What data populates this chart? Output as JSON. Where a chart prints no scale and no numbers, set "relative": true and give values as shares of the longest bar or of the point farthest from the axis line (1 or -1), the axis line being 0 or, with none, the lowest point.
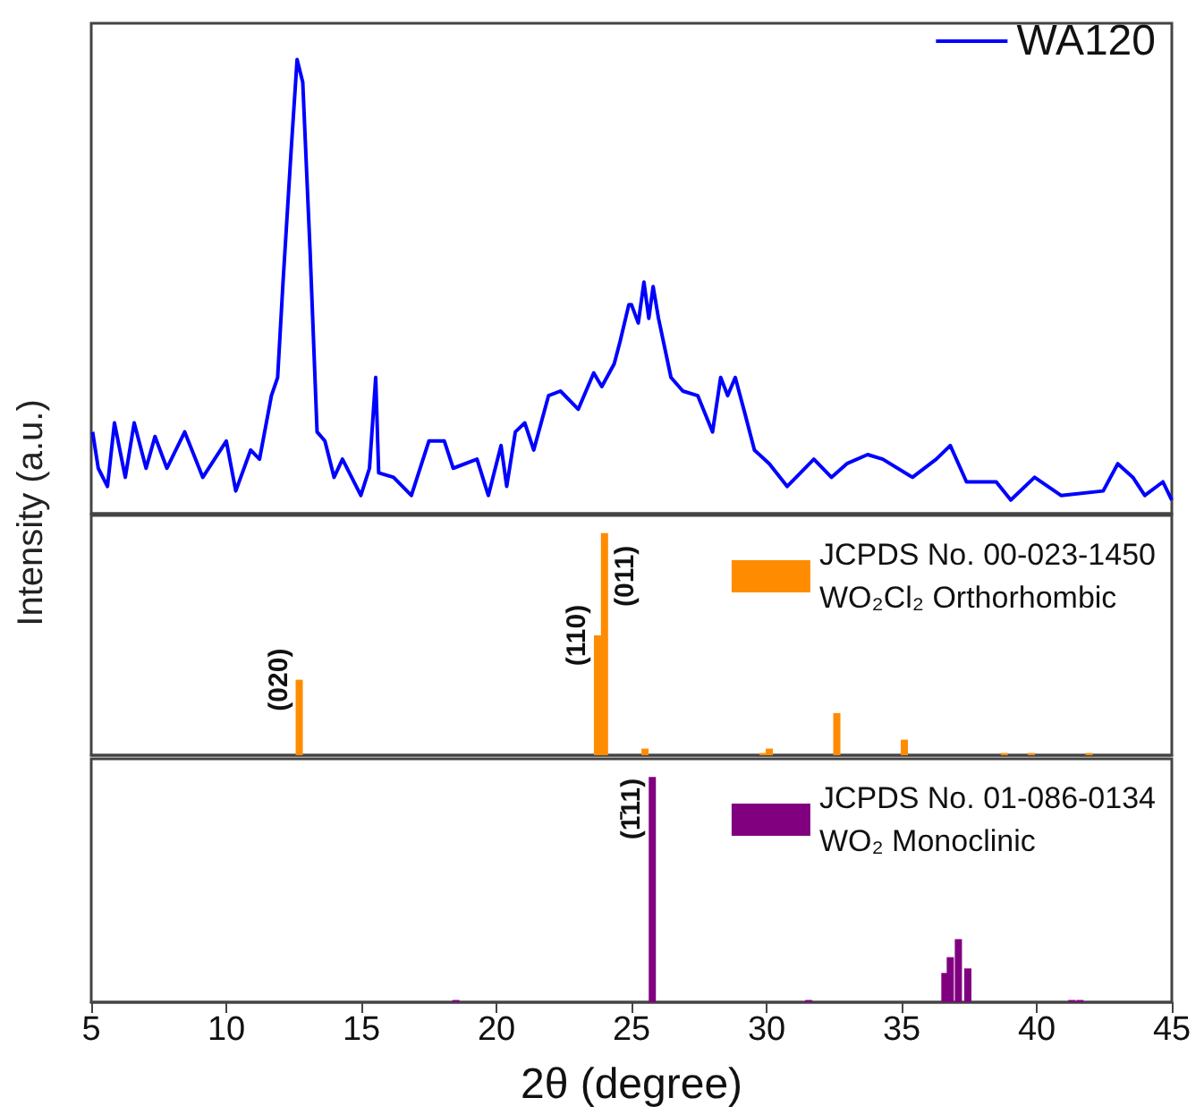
{
  "chart_data": [
    {
      "type": "line",
      "relative": true,
      "xlim": [
        5,
        45
      ],
      "tick_labels": false,
      "grid": false,
      "legend": "top right",
      "marker": "none",
      "line_style": "solid",
      "series": [
        {
          "name": "WA120",
          "color": "#0000ff",
          "x": [
            5.05,
            5.26,
            5.6,
            5.86,
            6.26,
            6.59,
            7.03,
            7.36,
            7.8,
            8.46,
            9.13,
            10.0,
            10.35,
            10.9,
            11.23,
            11.67,
            11.9,
            12.1,
            12.4,
            12.62,
            12.83,
            13.1,
            13.36,
            13.65,
            13.99,
            14.3,
            14.98,
            15.3,
            15.53,
            15.64,
            16.19,
            16.85,
            17.5,
            18.07,
            18.4,
            19.28,
            19.7,
            20.17,
            20.38,
            20.7,
            21.05,
            21.38,
            21.93,
            22.37,
            23.03,
            23.6,
            23.9,
            24.36,
            24.58,
            24.9,
            25.0,
            25.25,
            25.46,
            25.64,
            25.8,
            26.0,
            26.46,
            26.9,
            27.45,
            28.0,
            28.3,
            28.56,
            28.84,
            29.2,
            29.55,
            30.1,
            30.76,
            31.75,
            32.4,
            32.97,
            33.74,
            34.3,
            35.4,
            36.28,
            36.8,
            37.4,
            38.5,
            39.04,
            39.92,
            40.9,
            42.46,
            43.0,
            43.56,
            44.0,
            44.67,
            45.0
          ],
          "values": [
            0.18,
            0.1,
            0.06,
            0.2,
            0.08,
            0.2,
            0.1,
            0.17,
            0.1,
            0.18,
            0.08,
            0.16,
            0.05,
            0.14,
            0.12,
            0.26,
            0.3,
            0.51,
            0.8,
            1.0,
            0.95,
            0.58,
            0.18,
            0.16,
            0.08,
            0.12,
            0.04,
            0.1,
            0.3,
            0.09,
            0.08,
            0.04,
            0.16,
            0.16,
            0.1,
            0.12,
            0.04,
            0.15,
            0.06,
            0.18,
            0.2,
            0.14,
            0.26,
            0.27,
            0.23,
            0.31,
            0.28,
            0.33,
            0.38,
            0.46,
            0.46,
            0.42,
            0.51,
            0.43,
            0.5,
            0.43,
            0.3,
            0.27,
            0.26,
            0.18,
            0.3,
            0.26,
            0.3,
            0.22,
            0.14,
            0.11,
            0.06,
            0.12,
            0.08,
            0.11,
            0.13,
            0.12,
            0.08,
            0.12,
            0.15,
            0.07,
            0.07,
            0.03,
            0.08,
            0.04,
            0.05,
            0.11,
            0.08,
            0.04,
            0.07,
            0.03
          ]
        }
      ]
    },
    {
      "type": "bar",
      "relative": true,
      "xlim": [
        5,
        45
      ],
      "tick_labels": false,
      "grid": false,
      "legend": "top right",
      "ylabel": "Intensity (a.u.)",
      "series": [
        {
          "name": "JCPDS No. 00-023-1450\nWO₂Cl₂ Orthorhombic",
          "color": "#ff8c00",
          "x": [
            12.7,
            23.74,
            24.0,
            25.5,
            29.87,
            30.1,
            32.6,
            35.1,
            38.8,
            39.8,
            41.94
          ],
          "values": [
            0.34,
            0.54,
            1.0,
            0.03,
            0.01,
            0.03,
            0.19,
            0.07,
            0.01,
            0.01,
            0.01
          ]
        }
      ],
      "annotations": [
        {
          "text": "(020)",
          "x": 12.7,
          "y": 0.34
        },
        {
          "text": "(110)",
          "x": 23.74,
          "y": 0.54
        },
        {
          "text": "(011)",
          "x": 24.0,
          "y": 1.0
        }
      ]
    },
    {
      "type": "bar",
      "relative": true,
      "xlim": [
        5,
        45
      ],
      "xticks": [
        5,
        10,
        15,
        20,
        25,
        30,
        35,
        40,
        45
      ],
      "tick_labels": "x",
      "grid": false,
      "legend": "top right",
      "xlabel": "2θ (degree)",
      "series": [
        {
          "name": "JCPDS No. 01-086-0134\nWO₂ Monoclinic",
          "color": "#800080",
          "x": [
            18.5,
            25.77,
            31.56,
            36.6,
            36.8,
            37.1,
            37.45,
            41.3,
            41.6
          ],
          "values": [
            0.01,
            1.0,
            0.01,
            0.13,
            0.2,
            0.28,
            0.15,
            0.01,
            0.01
          ]
        }
      ],
      "annotations": [
        {
          "text": "(1̄11)",
          "x": 25.77,
          "y": 1.0
        }
      ]
    }
  ]
}
